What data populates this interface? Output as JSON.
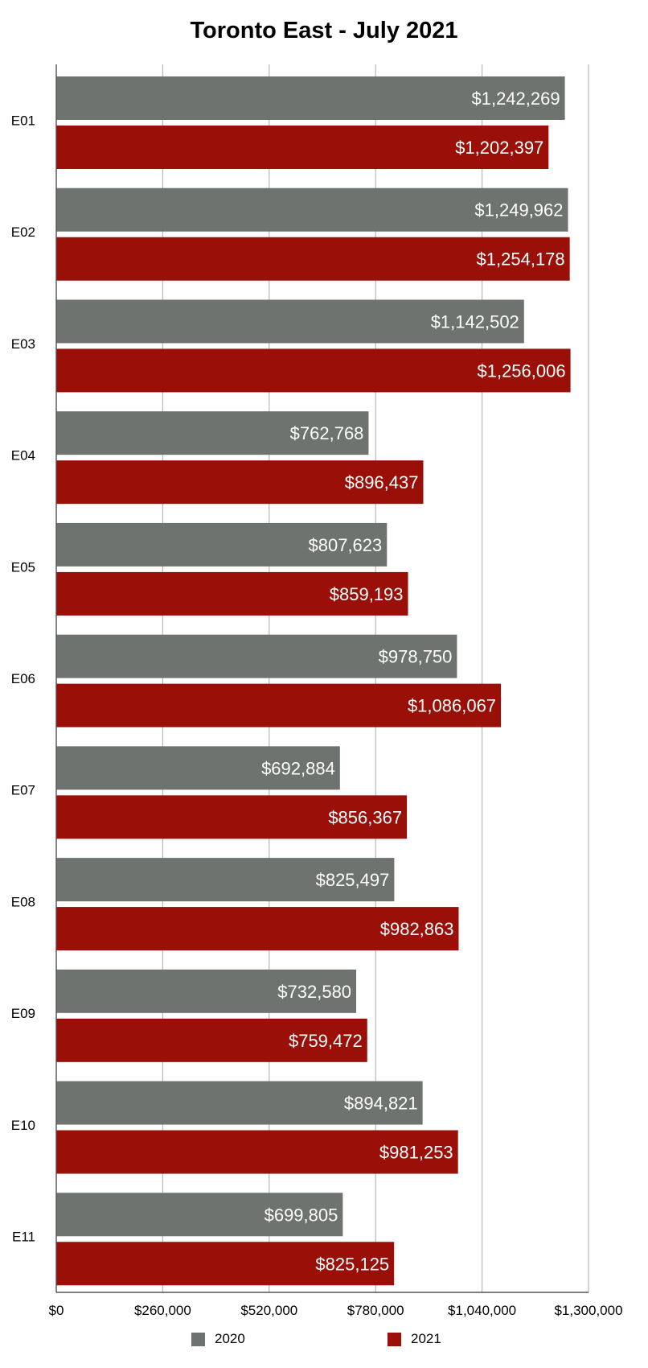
{
  "chart_data": {
    "type": "bar",
    "orientation": "horizontal",
    "title": "Toronto East - July 2021",
    "xlabel": "",
    "ylabel": "",
    "categories": [
      "E01",
      "E02",
      "E03",
      "E04",
      "E05",
      "E06",
      "E07",
      "E08",
      "E09",
      "E10",
      "E11"
    ],
    "series": [
      {
        "name": "2020",
        "color": "#6e736f",
        "values": [
          1242269,
          1249962,
          1142502,
          762768,
          807623,
          978750,
          692884,
          825497,
          732580,
          894821,
          699805
        ],
        "labels": [
          "$1,242,269",
          "$1,249,962",
          "$1,142,502",
          "$762,768",
          "$807,623",
          "$978,750",
          "$692,884",
          "$825,497",
          "$732,580",
          "$894,821",
          "$699,805"
        ]
      },
      {
        "name": "2021",
        "color": "#9a1008",
        "values": [
          1202397,
          1254178,
          1256006,
          896437,
          859193,
          1086067,
          856367,
          982863,
          759472,
          981253,
          825125
        ],
        "labels": [
          "$1,202,397",
          "$1,254,178",
          "$1,256,006",
          "$896,437",
          "$859,193",
          "$1,086,067",
          "$856,367",
          "$982,863",
          "$759,472",
          "$981,253",
          "$825,125"
        ]
      }
    ],
    "xlim": [
      0,
      1300000
    ],
    "ticks": [
      0,
      260000,
      520000,
      780000,
      1040000,
      1300000
    ],
    "tick_labels": [
      "$0",
      "$260,000",
      "$520,000",
      "$780,000",
      "$1,040,000",
      "$1,300,000"
    ],
    "grid": true,
    "legend_position": "bottom"
  }
}
